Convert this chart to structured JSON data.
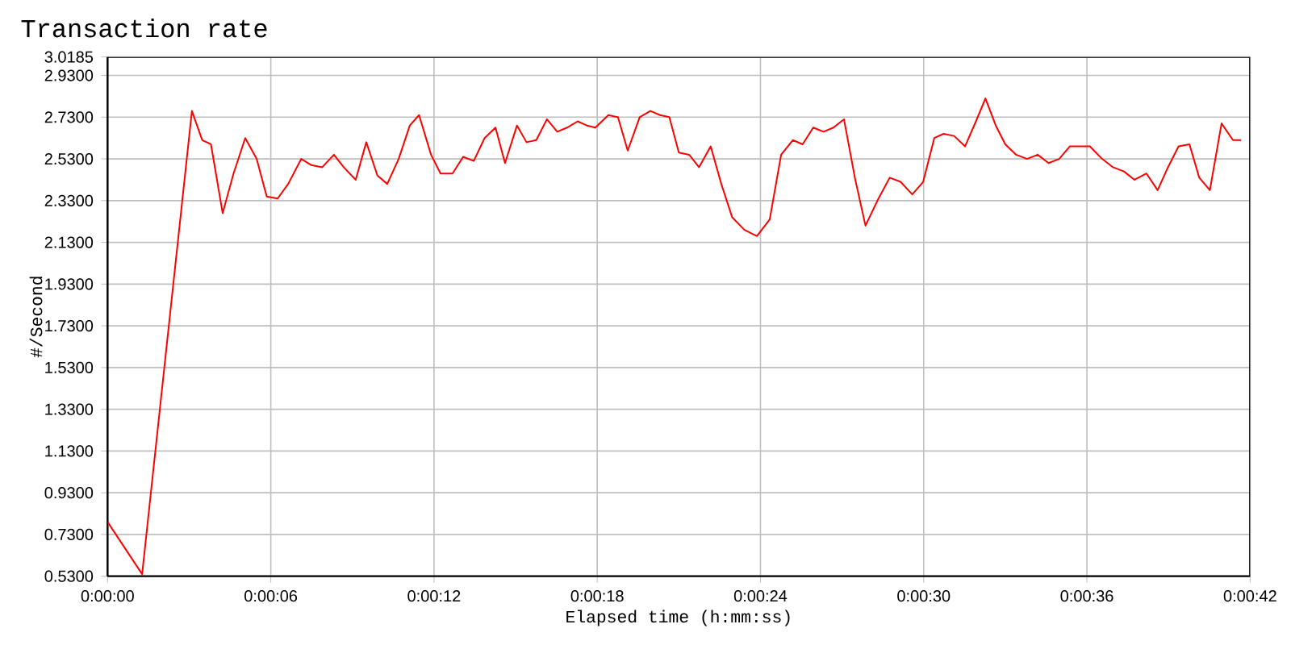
{
  "chart_data": {
    "type": "line",
    "title": "Transaction rate",
    "xlabel": "Elapsed time (h:mm:ss)",
    "ylabel": "#/Second",
    "x": [
      0,
      1.27,
      3.1,
      3.48,
      3.8,
      4.23,
      4.63,
      5.06,
      5.48,
      5.85,
      6.25,
      6.64,
      7.12,
      7.49,
      7.89,
      8.32,
      8.68,
      9.12,
      9.51,
      9.92,
      10.28,
      10.7,
      11.11,
      11.45,
      11.89,
      12.24,
      12.68,
      13.07,
      13.46,
      13.86,
      14.26,
      14.61,
      15.05,
      15.4,
      15.76,
      16.15,
      16.53,
      16.89,
      17.28,
      17.62,
      17.93,
      18.41,
      18.76,
      19.12,
      19.56,
      19.95,
      20.31,
      20.65,
      21.0,
      21.38,
      21.74,
      22.17,
      22.56,
      22.96,
      23.41,
      23.87,
      24.34,
      24.76,
      25.19,
      25.55,
      25.94,
      26.32,
      26.68,
      27.07,
      27.47,
      27.86,
      28.3,
      28.75,
      29.15,
      29.58,
      29.98,
      30.39,
      30.73,
      31.12,
      31.52,
      31.92,
      32.27,
      32.65,
      33.0,
      33.4,
      33.8,
      34.19,
      34.59,
      34.98,
      35.37,
      35.73,
      36.11,
      36.56,
      36.96,
      37.36,
      37.75,
      38.19,
      38.6,
      38.98,
      39.37,
      39.77,
      40.13,
      40.52,
      40.95,
      41.37,
      41.67
    ],
    "series": [
      {
        "color": "#ff0000",
        "values": [
          0.79,
          0.54,
          2.76,
          2.62,
          2.6,
          2.27,
          2.46,
          2.63,
          2.53,
          2.35,
          2.34,
          2.41,
          2.53,
          2.5,
          2.49,
          2.55,
          2.49,
          2.43,
          2.61,
          2.45,
          2.41,
          2.53,
          2.69,
          2.74,
          2.55,
          2.46,
          2.46,
          2.54,
          2.52,
          2.63,
          2.68,
          2.51,
          2.69,
          2.61,
          2.62,
          2.72,
          2.66,
          2.68,
          2.71,
          2.69,
          2.68,
          2.74,
          2.73,
          2.57,
          2.73,
          2.76,
          2.74,
          2.73,
          2.56,
          2.55,
          2.49,
          2.59,
          2.41,
          2.25,
          2.19,
          2.16,
          2.24,
          2.55,
          2.62,
          2.6,
          2.68,
          2.66,
          2.68,
          2.72,
          2.44,
          2.21,
          2.33,
          2.44,
          2.42,
          2.36,
          2.42,
          2.63,
          2.65,
          2.64,
          2.59,
          2.71,
          2.82,
          2.69,
          2.6,
          2.55,
          2.53,
          2.55,
          2.51,
          2.53,
          2.59,
          2.59,
          2.59,
          2.53,
          2.49,
          2.47,
          2.43,
          2.46,
          2.38,
          2.49,
          2.59,
          2.6,
          2.44,
          2.38,
          2.7,
          2.62,
          2.62
        ]
      }
    ],
    "xlim": [
      0,
      42
    ],
    "xticks": [
      {
        "value": 0,
        "label": "0:00:00"
      },
      {
        "value": 6,
        "label": "0:00:06"
      },
      {
        "value": 12,
        "label": "0:00:12"
      },
      {
        "value": 18,
        "label": "0:00:18"
      },
      {
        "value": 24,
        "label": "0:00:24"
      },
      {
        "value": 30,
        "label": "0:00:30"
      },
      {
        "value": 36,
        "label": "0:00:36"
      },
      {
        "value": 42,
        "label": "0:00:42"
      }
    ],
    "ylim": [
      0.53,
      3.0185
    ],
    "yticks": [
      {
        "value": 0.53,
        "label": "0.5300"
      },
      {
        "value": 0.73,
        "label": "0.7300"
      },
      {
        "value": 0.93,
        "label": "0.9300"
      },
      {
        "value": 1.13,
        "label": "1.1300"
      },
      {
        "value": 1.33,
        "label": "1.3300"
      },
      {
        "value": 1.53,
        "label": "1.5300"
      },
      {
        "value": 1.73,
        "label": "1.7300"
      },
      {
        "value": 1.93,
        "label": "1.9300"
      },
      {
        "value": 2.13,
        "label": "2.1300"
      },
      {
        "value": 2.33,
        "label": "2.3300"
      },
      {
        "value": 2.53,
        "label": "2.5300"
      },
      {
        "value": 2.73,
        "label": "2.7300"
      },
      {
        "value": 2.93,
        "label": "2.9300"
      },
      {
        "value": 3.0185,
        "label": "3.0185"
      }
    ],
    "grid": true,
    "marker": "none",
    "line_style": "solid"
  }
}
